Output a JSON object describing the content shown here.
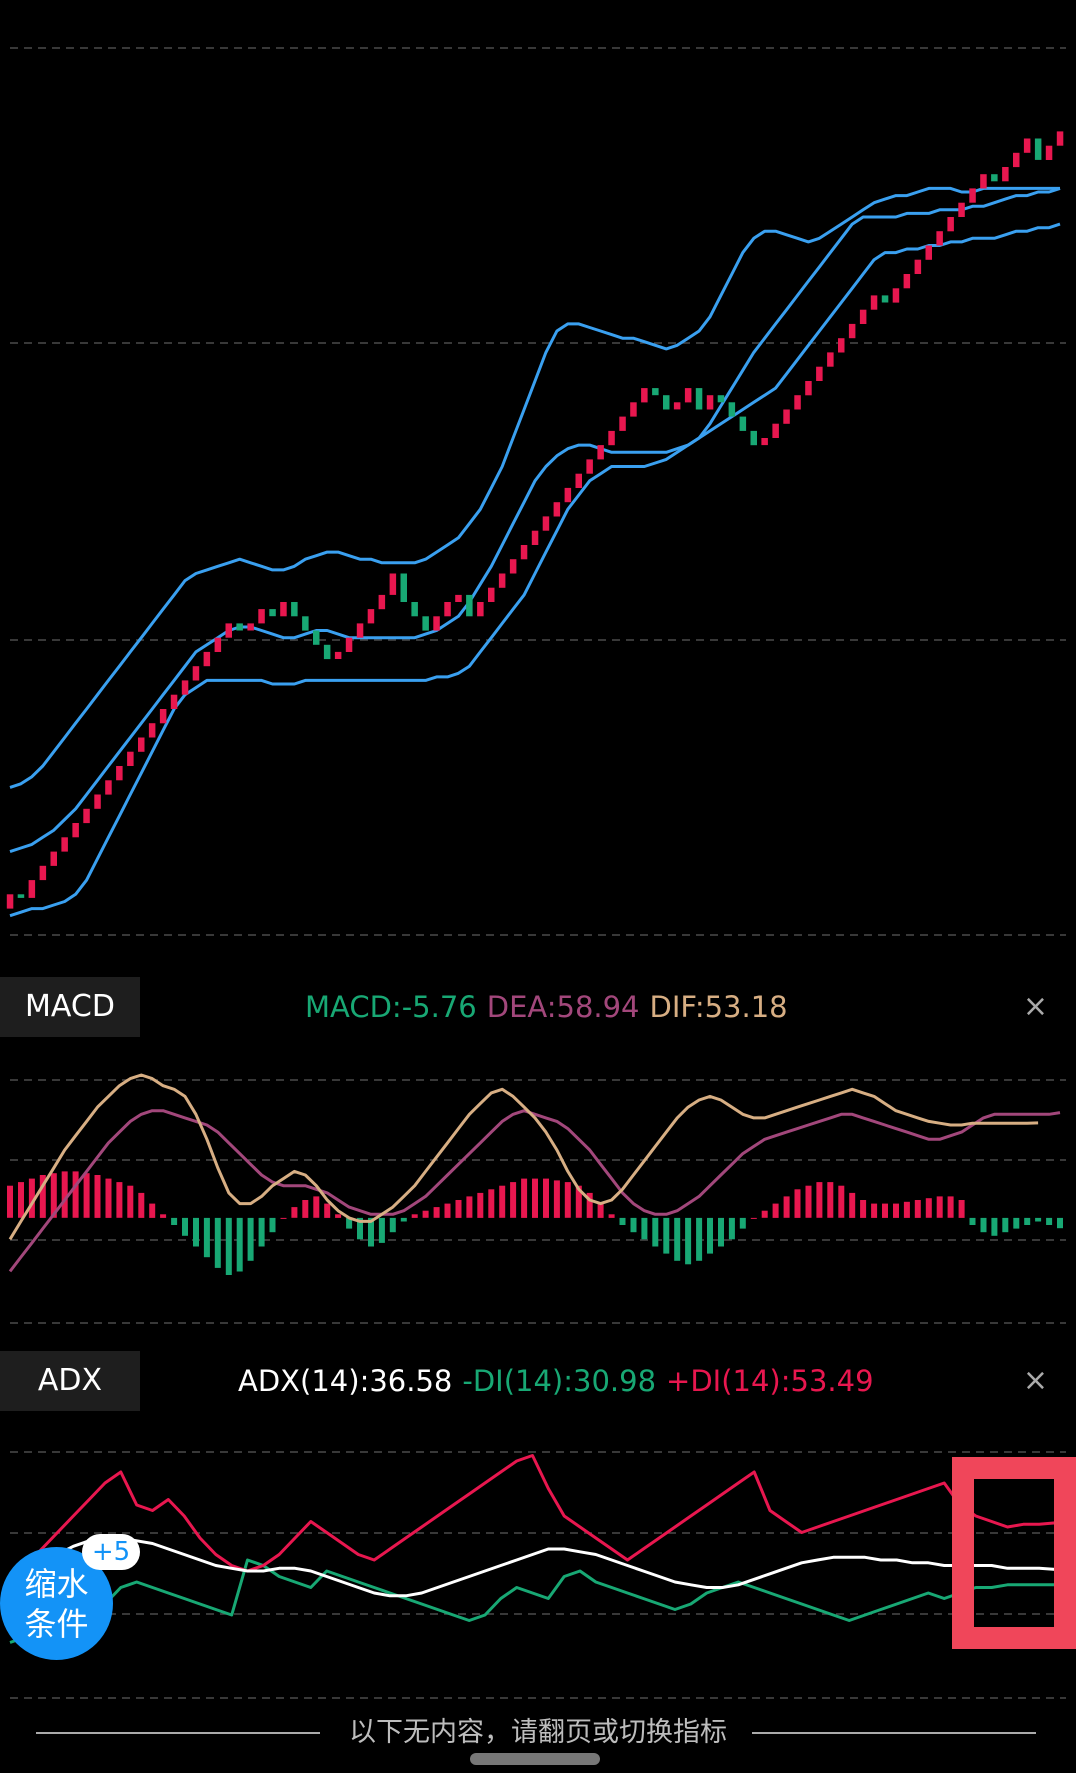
{
  "colors": {
    "up": "#e8174f",
    "down": "#18a874",
    "boll": "#3aa0f0",
    "macd_label": "#18a874",
    "dea": "#a2477b",
    "dif": "#d7ae83",
    "adx": "#ffffff",
    "minus_di": "#18a874",
    "plus_di": "#e8174f",
    "fab": "#1393f7",
    "highlight": "#f0465a"
  },
  "macd_panel": {
    "tab_label": "MACD",
    "macd_label": "MACD:-5.76",
    "dea_label": "DEA:58.94",
    "dif_label": "DIF:53.18",
    "close_icon": "×"
  },
  "adx_panel": {
    "tab_label": "ADX",
    "adx_label": "ADX(14):36.58",
    "minus_di_label": "-DI(14):30.98",
    "plus_di_label": "+DI(14):53.49",
    "close_icon": "×"
  },
  "fab": {
    "line1": "缩水",
    "line2": "条件",
    "badge": "+5"
  },
  "footer": {
    "text": "以下无内容，请翻页或切换指标"
  },
  "chart_data": [
    {
      "type": "line",
      "subtype": "renko_with_bollinger",
      "series": [
        {
          "name": "brick_close",
          "values": [
            10,
            9,
            14,
            18,
            22,
            26,
            30,
            34,
            38,
            42,
            46,
            50,
            54,
            58,
            62,
            66,
            70,
            74,
            78,
            82,
            86,
            84,
            86,
            90,
            88,
            92,
            88,
            84,
            80,
            76,
            78,
            82,
            86,
            90,
            94,
            100,
            92,
            88,
            84,
            88,
            92,
            94,
            88,
            92,
            96,
            100,
            104,
            108,
            112,
            116,
            120,
            124,
            128,
            132,
            136,
            140,
            144,
            148,
            152,
            150,
            146,
            148,
            152,
            146,
            150,
            148,
            144,
            140,
            136,
            138,
            142,
            146,
            150,
            154,
            158,
            162,
            166,
            170,
            174,
            178,
            176,
            180,
            184,
            188,
            192,
            196,
            200,
            204,
            208,
            212,
            210,
            214,
            218,
            222,
            216,
            220,
            224
          ]
        },
        {
          "name": "boll_upper",
          "values": [
            40,
            41,
            43,
            46,
            50,
            54,
            58,
            62,
            66,
            70,
            74,
            78,
            82,
            86,
            90,
            94,
            98,
            100,
            101,
            102,
            103,
            104,
            103,
            102,
            101,
            101,
            102,
            104,
            105,
            106,
            106,
            105,
            104,
            104,
            103,
            103,
            103,
            103,
            104,
            106,
            108,
            110,
            114,
            118,
            124,
            130,
            138,
            146,
            154,
            162,
            168,
            170,
            170,
            169,
            168,
            167,
            166,
            166,
            165,
            164,
            163,
            164,
            166,
            168,
            172,
            178,
            184,
            190,
            194,
            196,
            196,
            195,
            194,
            193,
            194,
            196,
            198,
            200,
            202,
            204,
            205,
            206,
            206,
            207,
            208,
            208,
            208,
            207,
            207,
            208,
            208,
            208,
            208,
            208,
            208,
            208,
            208
          ]
        },
        {
          "name": "boll_middle",
          "values": [
            22,
            23,
            24,
            26,
            28,
            31,
            34,
            38,
            42,
            46,
            50,
            54,
            58,
            62,
            66,
            70,
            74,
            78,
            80,
            82,
            84,
            85,
            85,
            84,
            83,
            82,
            82,
            83,
            84,
            84,
            83,
            82,
            82,
            82,
            82,
            82,
            82,
            82,
            83,
            84,
            86,
            88,
            92,
            97,
            102,
            108,
            114,
            120,
            126,
            130,
            133,
            135,
            136,
            136,
            135,
            134,
            134,
            134,
            134,
            134,
            134,
            135,
            136,
            138,
            142,
            147,
            152,
            157,
            162,
            166,
            170,
            174,
            178,
            182,
            186,
            190,
            194,
            198,
            200,
            200,
            200,
            200,
            201,
            201,
            201,
            202,
            202,
            202,
            203,
            203,
            204,
            205,
            206,
            206,
            207,
            207,
            208
          ]
        },
        {
          "name": "boll_lower",
          "values": [
            4,
            5,
            6,
            6,
            7,
            8,
            10,
            14,
            20,
            26,
            32,
            38,
            44,
            50,
            56,
            62,
            66,
            68,
            70,
            70,
            70,
            70,
            70,
            70,
            69,
            69,
            69,
            70,
            70,
            70,
            70,
            70,
            70,
            70,
            70,
            70,
            70,
            70,
            70,
            71,
            71,
            72,
            74,
            78,
            82,
            86,
            90,
            94,
            100,
            106,
            112,
            118,
            122,
            126,
            128,
            130,
            130,
            130,
            130,
            131,
            132,
            134,
            136,
            138,
            140,
            142,
            144,
            146,
            148,
            150,
            152,
            156,
            160,
            164,
            168,
            172,
            176,
            180,
            184,
            188,
            190,
            190,
            191,
            191,
            192,
            192,
            193,
            193,
            194,
            194,
            194,
            195,
            196,
            196,
            197,
            197,
            198
          ]
        }
      ]
    },
    {
      "type": "bar",
      "title": "MACD",
      "ylim": [
        -60,
        80
      ],
      "series": [
        {
          "name": "MACD",
          "values": [
            18,
            20,
            22,
            24,
            25,
            26,
            26,
            25,
            24,
            22,
            20,
            18,
            14,
            8,
            2,
            -4,
            -10,
            -16,
            -22,
            -28,
            -32,
            -30,
            -24,
            -16,
            -8,
            0,
            6,
            10,
            12,
            8,
            2,
            -6,
            -12,
            -16,
            -14,
            -8,
            -2,
            2,
            4,
            6,
            8,
            10,
            12,
            14,
            16,
            18,
            20,
            22,
            22,
            22,
            21,
            20,
            18,
            14,
            8,
            2,
            -4,
            -8,
            -12,
            -16,
            -20,
            -24,
            -26,
            -24,
            -20,
            -16,
            -12,
            -6,
            0,
            4,
            8,
            12,
            16,
            18,
            20,
            20,
            18,
            14,
            10,
            8,
            8,
            8,
            9,
            10,
            11,
            12,
            12,
            10,
            -4,
            -8,
            -10,
            -8,
            -6,
            -4,
            -2,
            -4,
            -5.76
          ]
        },
        {
          "name": "DEA",
          "values": [
            -30,
            -22,
            -14,
            -6,
            2,
            10,
            18,
            26,
            34,
            42,
            48,
            54,
            58,
            60,
            60,
            58,
            56,
            54,
            52,
            48,
            42,
            36,
            30,
            24,
            20,
            18,
            18,
            18,
            16,
            14,
            10,
            6,
            4,
            2,
            2,
            2,
            4,
            8,
            12,
            18,
            24,
            30,
            36,
            42,
            48,
            54,
            58,
            60,
            58,
            56,
            54,
            50,
            44,
            38,
            30,
            22,
            14,
            8,
            4,
            2,
            2,
            4,
            8,
            12,
            18,
            24,
            30,
            36,
            40,
            44,
            46,
            48,
            50,
            52,
            54,
            56,
            58,
            58,
            56,
            54,
            52,
            50,
            48,
            46,
            44,
            44,
            46,
            48,
            52,
            56,
            58,
            58,
            58,
            58,
            58,
            58,
            58.94
          ]
        },
        {
          "name": "DIF",
          "values": [
            -12,
            -2,
            8,
            18,
            28,
            38,
            46,
            54,
            62,
            68,
            74,
            78,
            80,
            78,
            74,
            72,
            68,
            58,
            44,
            28,
            14,
            8,
            8,
            12,
            18,
            22,
            26,
            24,
            18,
            10,
            4,
            0,
            -2,
            -2,
            2,
            6,
            12,
            18,
            26,
            34,
            42,
            50,
            58,
            64,
            70,
            72,
            68,
            62,
            56,
            48,
            38,
            26,
            16,
            10,
            8,
            10,
            16,
            24,
            32,
            40,
            48,
            56,
            62,
            66,
            68,
            66,
            62,
            58,
            56,
            56,
            58,
            60,
            62,
            64,
            66,
            68,
            70,
            72,
            70,
            68,
            64,
            60,
            58,
            56,
            54,
            53,
            52,
            52,
            53,
            53,
            53,
            53,
            53,
            53,
            53.18
          ]
        }
      ]
    },
    {
      "type": "line",
      "title": "ADX",
      "ylim": [
        0,
        80
      ],
      "series": [
        {
          "name": "ADX(14)",
          "values": [
            30,
            34,
            38,
            42,
            45,
            47,
            48,
            48,
            47,
            46,
            44,
            42,
            40,
            38,
            37,
            36,
            36,
            37,
            37,
            36,
            34,
            32,
            30,
            28,
            27,
            27,
            28,
            30,
            32,
            34,
            36,
            38,
            40,
            42,
            44,
            44,
            43,
            42,
            40,
            38,
            36,
            34,
            32,
            31,
            30,
            30,
            31,
            33,
            35,
            37,
            39,
            40,
            41,
            41,
            41,
            40,
            40,
            39,
            39,
            38,
            38,
            38,
            38,
            37,
            37,
            37,
            36.58
          ]
        },
        {
          "name": "-DI(14)",
          "values": [
            10,
            12,
            12,
            18,
            16,
            18,
            24,
            30,
            32,
            30,
            28,
            26,
            24,
            22,
            20,
            40,
            38,
            34,
            32,
            30,
            36,
            34,
            32,
            30,
            28,
            26,
            24,
            22,
            20,
            18,
            20,
            26,
            30,
            28,
            26,
            34,
            36,
            32,
            30,
            28,
            26,
            24,
            22,
            24,
            28,
            30,
            32,
            30,
            28,
            26,
            24,
            22,
            20,
            18,
            20,
            22,
            24,
            26,
            28,
            26,
            28,
            30,
            30,
            31,
            31,
            31,
            30.98
          ]
        },
        {
          "name": "+DI(14)",
          "values": [
            30,
            38,
            44,
            50,
            56,
            62,
            68,
            72,
            60,
            58,
            62,
            56,
            48,
            42,
            38,
            36,
            38,
            42,
            48,
            54,
            50,
            46,
            42,
            40,
            44,
            48,
            52,
            56,
            60,
            64,
            68,
            72,
            76,
            78,
            66,
            56,
            52,
            48,
            44,
            40,
            44,
            48,
            52,
            56,
            60,
            64,
            68,
            72,
            58,
            54,
            50,
            52,
            54,
            56,
            58,
            60,
            62,
            64,
            66,
            68,
            60,
            56,
            54,
            52,
            53,
            53,
            53.49
          ]
        }
      ]
    }
  ]
}
